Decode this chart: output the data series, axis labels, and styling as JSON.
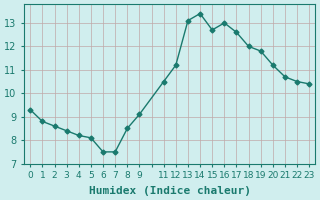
{
  "x": [
    0,
    1,
    2,
    3,
    4,
    5,
    6,
    7,
    8,
    9,
    11,
    12,
    13,
    14,
    15,
    16,
    17,
    18,
    19,
    20,
    21,
    22,
    23
  ],
  "y": [
    9.3,
    8.8,
    8.6,
    8.4,
    8.2,
    8.1,
    7.5,
    7.5,
    8.5,
    9.1,
    10.5,
    11.2,
    13.1,
    13.4,
    12.7,
    13.0,
    12.6,
    12.0,
    11.8,
    11.2,
    10.7,
    10.5,
    10.4
  ],
  "line_color": "#1a7a6e",
  "marker_color": "#1a7a6e",
  "bg_color": "#d0eeee",
  "grid_color": "#c0a8a8",
  "xlabel": "Humidex (Indice chaleur)",
  "xlim": [
    -0.5,
    23.5
  ],
  "ylim": [
    7.0,
    13.8
  ],
  "yticks": [
    7,
    8,
    9,
    10,
    11,
    12,
    13
  ],
  "xtick_positions": [
    0,
    1,
    2,
    3,
    4,
    5,
    6,
    7,
    8,
    9,
    10,
    11,
    12,
    13,
    14,
    15,
    16,
    17,
    18,
    19,
    20,
    21,
    22,
    23
  ],
  "xtick_labels": [
    "0",
    "1",
    "2",
    "3",
    "4",
    "5",
    "6",
    "7",
    "8",
    "9",
    "",
    "11",
    "12",
    "13",
    "14",
    "15",
    "16",
    "17",
    "18",
    "19",
    "20",
    "21",
    "22",
    "23"
  ],
  "font_color": "#1a7a6e",
  "font_size": 7,
  "label_font_size": 8
}
